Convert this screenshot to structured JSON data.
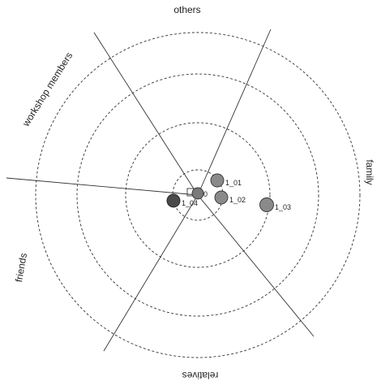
{
  "diagram": {
    "sectors": [
      {
        "key": "others",
        "label": "others"
      },
      {
        "key": "family",
        "label": "family"
      },
      {
        "key": "relatives",
        "label": "relatives"
      },
      {
        "key": "friends",
        "label": "friends"
      },
      {
        "key": "workshop",
        "label": "workshop members"
      }
    ],
    "center": {
      "label": "0"
    },
    "nodes": [
      {
        "id": "n1",
        "label": "1_01",
        "color": "#8a8a8a"
      },
      {
        "id": "n2",
        "label": "1_02",
        "color": "#8a8a8a"
      },
      {
        "id": "n3",
        "label": "1_03",
        "color": "#8a8a8a"
      },
      {
        "id": "n4",
        "label": "1_04",
        "color": "#4a4a4a"
      }
    ]
  }
}
